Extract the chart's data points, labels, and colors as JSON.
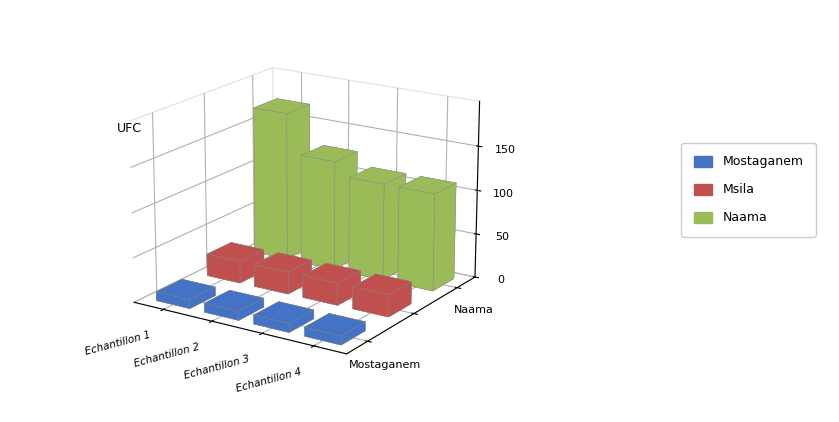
{
  "categories": [
    "Echantillon 1",
    "Echantillon 2",
    "Echantillon 3",
    "Echantillon 4"
  ],
  "series": [
    "Mostaganem",
    "Msila",
    "Naama"
  ],
  "values": {
    "Mostaganem": [
      10,
      10,
      10,
      10
    ],
    "Msila": [
      25,
      25,
      25,
      25
    ],
    "Naama": [
      170,
      125,
      110,
      110
    ]
  },
  "colors": {
    "Mostaganem": "#4472C4",
    "Msila": "#C0504D",
    "Naama": "#9BBB59"
  },
  "ylabel": "UFC",
  "zlim": [
    0,
    200
  ],
  "zticks": [
    0,
    50,
    100,
    150
  ],
  "background_color": "#ffffff",
  "bar_width": 0.7,
  "bar_depth": 0.5,
  "elev": 18,
  "azim": -57,
  "figsize": [
    8.39,
    4.22
  ],
  "dpi": 100,
  "series_y": {
    "Mostaganem": 0,
    "Msila": 1,
    "Naama": 2
  },
  "y_labels": [
    "Mostaganem",
    "Msila",
    "Naama"
  ],
  "legend_series": [
    "Mostaganem",
    "Msila",
    "Naama"
  ]
}
